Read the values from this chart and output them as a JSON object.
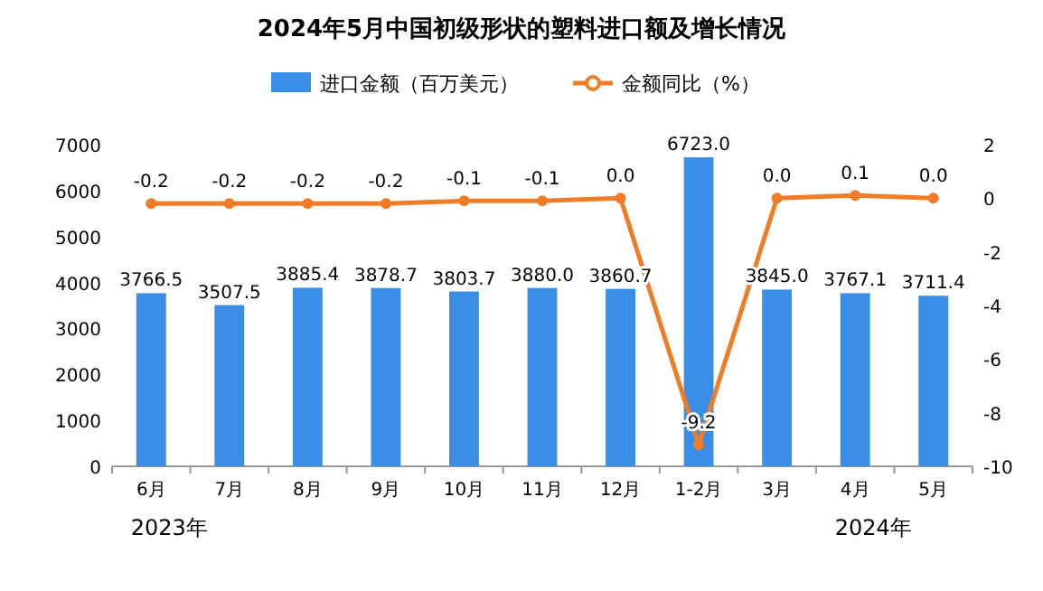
{
  "chart_data": {
    "type": "bar",
    "title": "2024年5月中国初级形状的塑料进口额及增长情况",
    "categories": [
      "6月",
      "7月",
      "8月",
      "9月",
      "10月",
      "11月",
      "12月",
      "1-2月",
      "3月",
      "4月",
      "5月"
    ],
    "series": [
      {
        "name": "进口金额（百万美元）",
        "type": "bar",
        "color": "#3a8ee6",
        "values": [
          3766.5,
          3507.5,
          3885.4,
          3878.7,
          3803.7,
          3880,
          3860.7,
          6723,
          3845,
          3767.1,
          3711.4
        ],
        "value_labels": [
          "3766.5",
          "3507.5",
          "3885.4",
          "3878.7",
          "3803.7",
          "3880.0",
          "3860.7",
          "6723.0",
          "3845.0",
          "3767.1",
          "3711.4"
        ]
      },
      {
        "name": "金额同比（%）",
        "type": "line",
        "axis": "y2",
        "color": "#f07c28",
        "values": [
          -0.2,
          -0.2,
          -0.2,
          -0.2,
          -0.1,
          -0.1,
          0,
          -9.2,
          0,
          0.1,
          0
        ],
        "value_labels": [
          "-0.2",
          "-0.2",
          "-0.2",
          "-0.2",
          "-0.1",
          "-0.1",
          "0.0",
          "-9.2",
          "0.0",
          "0.1",
          "0.0"
        ]
      }
    ],
    "ylim": [
      0,
      7000
    ],
    "yticks": [
      0,
      1000,
      2000,
      3000,
      4000,
      5000,
      6000,
      7000
    ],
    "y2lim": [
      -10,
      2
    ],
    "y2ticks": [
      -10,
      -8,
      -6,
      -4,
      -2,
      0,
      2
    ],
    "legend": "top",
    "marker": "circle",
    "grid": false,
    "annotations": [
      "2023年",
      "2024年"
    ]
  }
}
